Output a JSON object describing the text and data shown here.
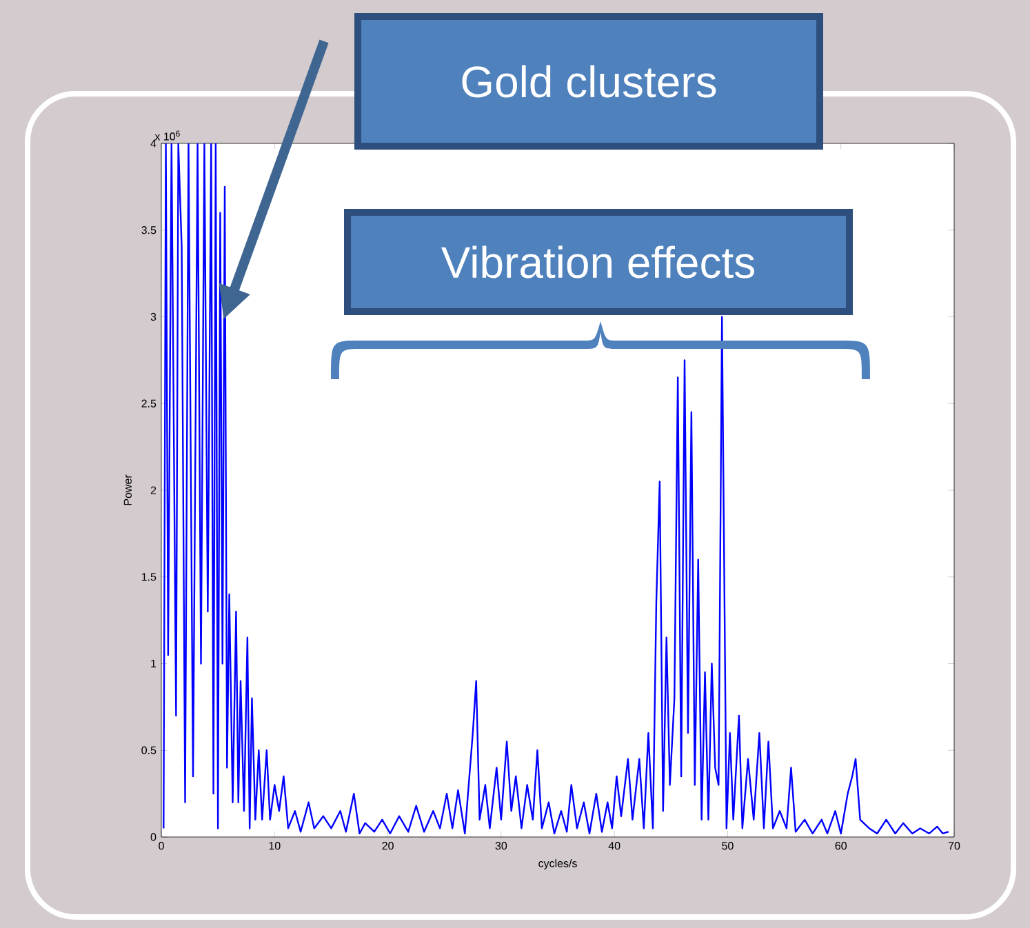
{
  "chart_data": {
    "type": "line",
    "xlabel": "cycles/s",
    "ylabel": "Power",
    "color": "#0000ff",
    "marker": "none",
    "xlim": [
      0,
      70
    ],
    "ylim": [
      0,
      4
    ],
    "xticks": [
      0,
      10,
      20,
      30,
      40,
      50,
      60,
      70
    ],
    "yticks": [
      0,
      0.5,
      1,
      1.5,
      2,
      2.5,
      3,
      3.5,
      4
    ],
    "x": [
      0.2,
      0.4,
      0.6,
      0.9,
      1.3,
      1.5,
      1.8,
      2.1,
      2.4,
      2.8,
      3.2,
      3.5,
      3.8,
      4.1,
      4.4,
      4.6,
      4.8,
      5.0,
      5.2,
      5.4,
      5.6,
      5.8,
      6.0,
      6.3,
      6.6,
      6.8,
      7.0,
      7.3,
      7.6,
      7.8,
      8.0,
      8.3,
      8.6,
      8.9,
      9.3,
      9.6,
      10.0,
      10.4,
      10.8,
      11.2,
      11.8,
      12.3,
      13.0,
      13.5,
      14.3,
      15.0,
      15.8,
      16.3,
      17.0,
      17.5,
      18.0,
      18.8,
      19.5,
      20.2,
      21.0,
      21.8,
      22.5,
      23.2,
      24.0,
      24.6,
      25.2,
      25.7,
      26.2,
      26.8,
      27.5,
      27.8,
      28.1,
      28.6,
      29.0,
      29.6,
      30.0,
      30.5,
      30.9,
      31.3,
      31.8,
      32.3,
      32.8,
      33.2,
      33.6,
      34.2,
      34.7,
      35.3,
      35.8,
      36.2,
      36.7,
      37.3,
      37.8,
      38.4,
      38.9,
      39.4,
      39.8,
      40.2,
      40.6,
      41.2,
      41.6,
      42.2,
      42.6,
      43.0,
      43.4,
      43.7,
      44.0,
      44.3,
      44.6,
      44.9,
      45.3,
      45.6,
      45.9,
      46.2,
      46.5,
      46.8,
      47.1,
      47.4,
      47.7,
      48.0,
      48.3,
      48.6,
      48.9,
      49.2,
      49.5,
      49.9,
      50.2,
      50.5,
      51.0,
      51.3,
      51.8,
      52.3,
      52.8,
      53.2,
      53.6,
      54.0,
      54.6,
      55.2,
      55.6,
      56.0,
      56.8,
      57.5,
      58.3,
      58.8,
      59.5,
      60.0,
      60.6,
      61.0,
      61.3,
      61.7,
      62.5,
      63.2,
      64.0,
      64.8,
      65.5,
      66.3,
      67.0,
      67.8,
      68.5,
      69.0,
      69.5
    ],
    "values": [
      0.05,
      4.0,
      1.05,
      4.0,
      0.7,
      4.0,
      3.4,
      0.2,
      4.0,
      0.35,
      4.0,
      1.0,
      4.0,
      1.3,
      4.0,
      0.25,
      4.0,
      0.05,
      3.6,
      1.0,
      3.75,
      0.4,
      1.4,
      0.2,
      1.3,
      0.2,
      0.9,
      0.15,
      1.15,
      0.05,
      0.8,
      0.1,
      0.5,
      0.1,
      0.5,
      0.1,
      0.3,
      0.15,
      0.35,
      0.05,
      0.15,
      0.03,
      0.2,
      0.05,
      0.12,
      0.05,
      0.15,
      0.03,
      0.25,
      0.02,
      0.08,
      0.03,
      0.1,
      0.02,
      0.12,
      0.03,
      0.18,
      0.03,
      0.15,
      0.05,
      0.25,
      0.05,
      0.27,
      0.02,
      0.6,
      0.9,
      0.1,
      0.3,
      0.05,
      0.4,
      0.1,
      0.55,
      0.15,
      0.35,
      0.05,
      0.3,
      0.1,
      0.5,
      0.05,
      0.2,
      0.02,
      0.15,
      0.03,
      0.3,
      0.05,
      0.2,
      0.02,
      0.25,
      0.03,
      0.2,
      0.05,
      0.35,
      0.12,
      0.45,
      0.1,
      0.45,
      0.05,
      0.6,
      0.05,
      1.35,
      2.05,
      0.15,
      1.15,
      0.3,
      0.8,
      2.65,
      0.35,
      2.75,
      0.6,
      2.45,
      0.3,
      1.6,
      0.1,
      0.95,
      0.1,
      1.0,
      0.4,
      0.3,
      3.0,
      0.05,
      0.6,
      0.1,
      0.7,
      0.05,
      0.45,
      0.1,
      0.6,
      0.05,
      0.55,
      0.05,
      0.15,
      0.05,
      0.4,
      0.03,
      0.1,
      0.02,
      0.1,
      0.02,
      0.15,
      0.02,
      0.25,
      0.35,
      0.45,
      0.1,
      0.05,
      0.02,
      0.1,
      0.02,
      0.08,
      0.02,
      0.05,
      0.02,
      0.06,
      0.02,
      0.03
    ],
    "annotations": [
      "x 10$^{6}$",
      "Gold clusters",
      "Vibration effects"
    ]
  }
}
